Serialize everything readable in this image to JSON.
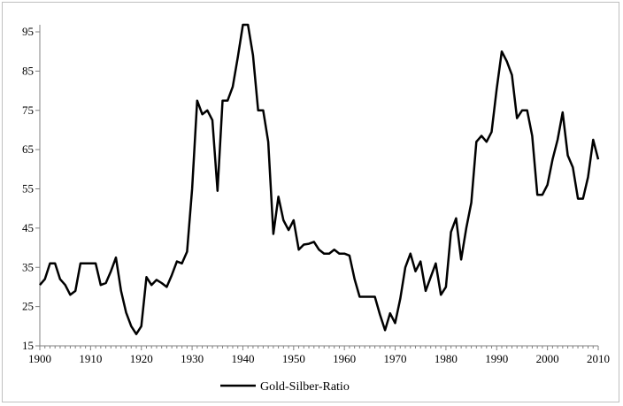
{
  "chart_data": {
    "type": "line",
    "title": "",
    "xlabel": "",
    "ylabel": "",
    "xlim": [
      1900,
      2010
    ],
    "ylim": [
      15,
      95
    ],
    "x_ticks": [
      1900,
      1910,
      1920,
      1930,
      1940,
      1950,
      1960,
      1970,
      1980,
      1990,
      2000,
      2010
    ],
    "y_ticks": [
      15,
      25,
      35,
      45,
      55,
      65,
      75,
      85,
      95
    ],
    "grid": false,
    "legend_position": "bottom",
    "line_color": "#000000",
    "series": [
      {
        "name": "Gold-Silber-Ratio",
        "x": [
          1900,
          1901,
          1902,
          1903,
          1904,
          1905,
          1906,
          1907,
          1908,
          1909,
          1910,
          1911,
          1912,
          1913,
          1914,
          1915,
          1916,
          1917,
          1918,
          1919,
          1920,
          1921,
          1922,
          1923,
          1924,
          1925,
          1926,
          1927,
          1928,
          1929,
          1930,
          1931,
          1932,
          1933,
          1934,
          1935,
          1936,
          1937,
          1938,
          1939,
          1940,
          1941,
          1942,
          1943,
          1944,
          1945,
          1946,
          1947,
          1948,
          1949,
          1950,
          1951,
          1952,
          1953,
          1954,
          1955,
          1956,
          1957,
          1958,
          1959,
          1960,
          1961,
          1962,
          1963,
          1964,
          1965,
          1966,
          1967,
          1968,
          1969,
          1970,
          1971,
          1972,
          1973,
          1974,
          1975,
          1976,
          1977,
          1978,
          1979,
          1980,
          1981,
          1982,
          1983,
          1984,
          1985,
          1986,
          1987,
          1988,
          1989,
          1990,
          1991,
          1992,
          1993,
          1994,
          1995,
          1996,
          1997,
          1998,
          1999,
          2000,
          2001,
          2002,
          2003,
          2004,
          2005,
          2006,
          2007,
          2008,
          2009,
          2010
        ],
        "y": [
          30.5,
          32,
          36,
          36,
          32,
          30.5,
          28,
          29,
          36,
          36,
          36,
          36,
          30.5,
          31,
          34,
          37.5,
          29,
          23.5,
          20,
          18,
          20,
          32.5,
          30.5,
          31.8,
          31,
          30,
          33,
          36.5,
          36,
          39,
          55,
          77.5,
          74,
          75,
          72.5,
          54.5,
          77.5,
          77.5,
          81,
          88.5,
          96.8,
          96.8,
          89,
          75,
          75,
          67,
          43.5,
          53,
          47,
          44.5,
          47,
          39.5,
          40.8,
          41,
          41.5,
          39.5,
          38.5,
          38.5,
          39.5,
          38.5,
          38.5,
          38,
          32,
          27.5,
          27.5,
          27.5,
          27.5,
          23,
          19,
          23.3,
          20.8,
          27,
          35,
          38.5,
          34,
          36.5,
          29,
          32.5,
          36,
          28,
          30,
          44,
          47.5,
          37,
          45,
          51.5,
          67,
          68.5,
          67,
          69.5,
          80.5,
          90,
          87.5,
          84,
          73,
          75,
          75,
          68.5,
          53.5,
          53.5,
          56,
          62.5,
          67.5,
          74.5,
          63.5,
          60.5,
          52.5,
          52.5,
          58,
          67.5,
          62.5
        ]
      }
    ]
  }
}
